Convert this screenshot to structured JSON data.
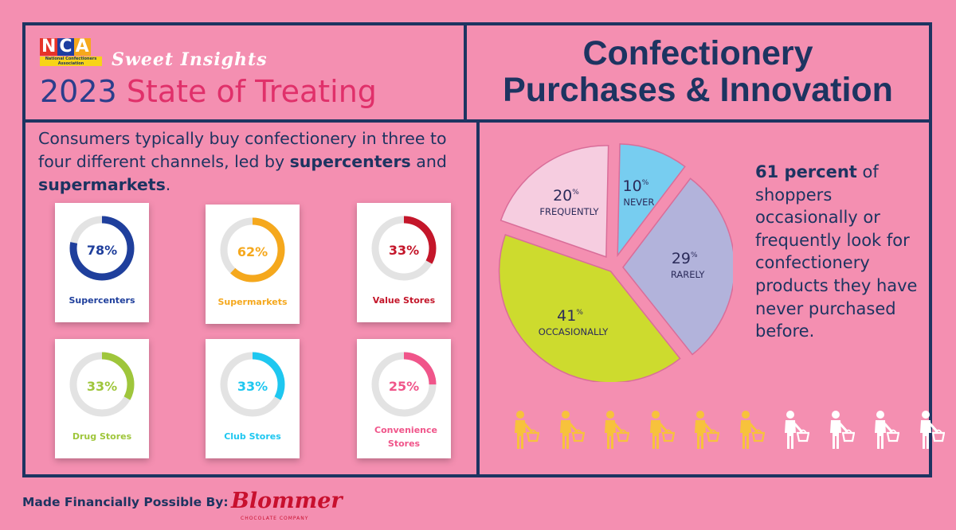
{
  "header": {
    "logo_text": "NCA",
    "logo_subtext": "National Confectioners Association",
    "series": "Sweet Insights",
    "year": "2023",
    "report": "State of Treating",
    "title_line1": "Confectionery",
    "title_line2": "Purchases & Innovation"
  },
  "intro": {
    "text_before": "Consumers typically buy confectionery in three to four different channels, led by ",
    "bold1": "supercenters",
    "text_mid": " and ",
    "bold2": "supermarkets",
    "text_after": "."
  },
  "side_text": {
    "bold": "61 percent",
    "rest": " of shoppers occasionally or frequently look for confectionery products they have never purchased before."
  },
  "chart_data": [
    {
      "type": "donut",
      "title": "",
      "categories": [
        "Supercenters",
        "Supermarkets",
        "Value Stores",
        "Drug Stores",
        "Club Stores",
        "Convenience Stores"
      ],
      "values": [
        78,
        62,
        33,
        33,
        33,
        25
      ],
      "labels": [
        "78%",
        "62%",
        "33%",
        "33%",
        "33%",
        "25%"
      ],
      "colors": [
        "#1f3f9c",
        "#f5a81d",
        "#c4162a",
        "#9fc63b",
        "#1ec7f0",
        "#f0558a"
      ],
      "track_color": "#e3e3e3"
    },
    {
      "type": "pie",
      "title": "",
      "categories": [
        "NEVER",
        "RARELY",
        "OCCASIONALLY",
        "FREQUENTLY"
      ],
      "values": [
        10,
        29,
        41,
        20
      ],
      "colors": [
        "#77cdf0",
        "#b2b3db",
        "#cddb2e",
        "#f6cde0"
      ],
      "value_suffix": "%"
    },
    {
      "type": "pictogram",
      "total": 10,
      "highlighted": 6,
      "highlight_color": "#f7c23c",
      "base_color": "#ffffff",
      "icon": "shopper-with-basket-icon"
    }
  ],
  "footer": {
    "label": "Made Financially Possible By:",
    "sponsor": "Blommer",
    "sponsor_sub": "CHOCOLATE COMPANY"
  }
}
